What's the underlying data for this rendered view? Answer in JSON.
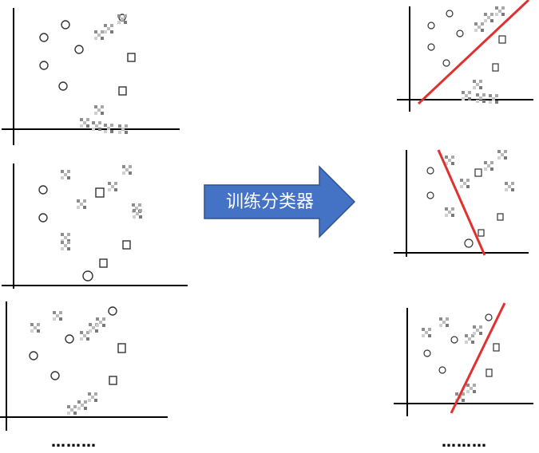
{
  "arrow": {
    "label": "训练分类器",
    "fill": "#4472C4",
    "stroke": "#2F528F"
  },
  "ellipsis_left": "………",
  "ellipsis_right": "………",
  "colors": {
    "axis": "#000000",
    "boundary": "#E03030",
    "marker_stroke": "#333333",
    "noise": "#9a9a9a"
  },
  "icons": {
    "class_a_marker": "circle",
    "class_b_marker": "square",
    "noise_marker": "pixel-cluster"
  }
}
